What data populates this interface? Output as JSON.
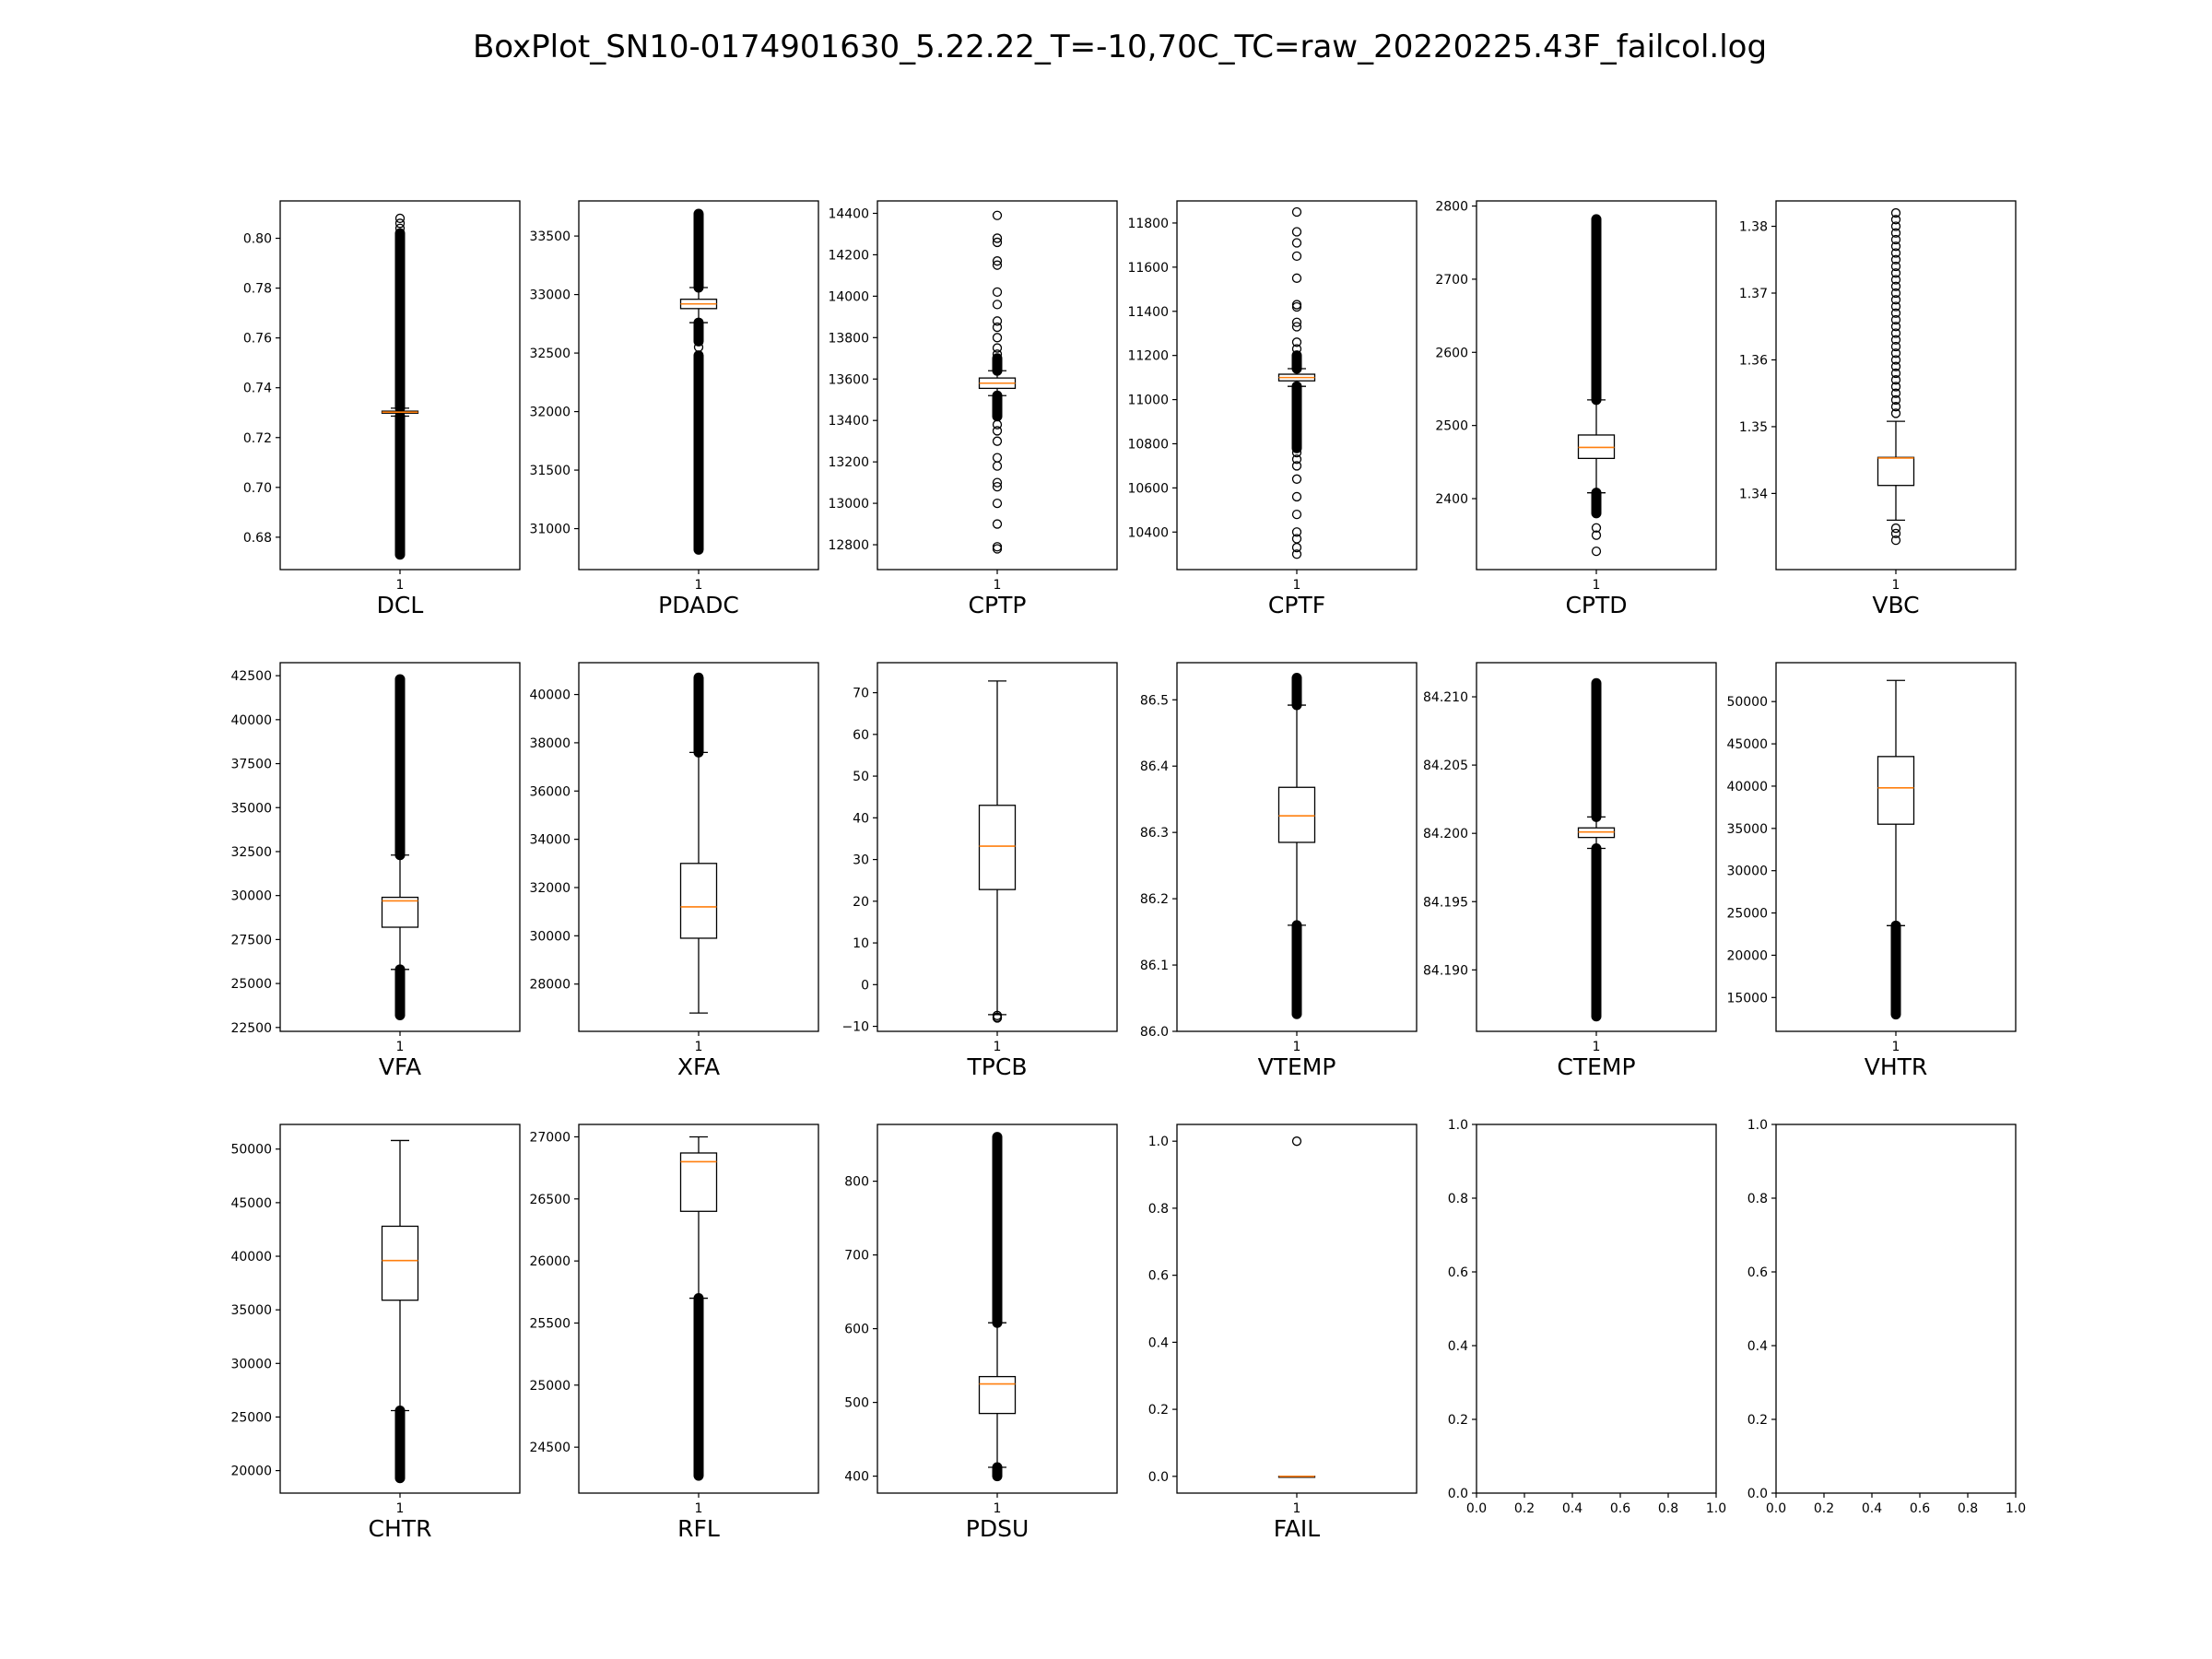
{
  "figure": {
    "title": "BoxPlot_SN10-0174901630_5.22.22_T=-10,70C_TC=raw_20220225.43F_failcol.log"
  },
  "chart_data": [
    {
      "type": "box",
      "xlabel": "DCL",
      "category": "1",
      "ylim": [
        0.667,
        0.815
      ],
      "yticks": [
        0.68,
        0.7,
        0.72,
        0.74,
        0.76,
        0.78,
        0.8
      ],
      "ytick_labels": [
        "0.68",
        "0.70",
        "0.72",
        "0.74",
        "0.76",
        "0.78",
        "0.80"
      ],
      "box": {
        "q1": 0.7298,
        "median": 0.7302,
        "q3": 0.7306,
        "whisker_low": 0.7286,
        "whisker_high": 0.7318
      },
      "outlier_bands": [
        [
          0.673,
          0.7286
        ],
        [
          0.7318,
          0.802
        ]
      ],
      "outliers": [
        0.804,
        0.806,
        0.808
      ]
    },
    {
      "type": "box",
      "xlabel": "PDADC",
      "category": "1",
      "ylim": [
        30650,
        33800
      ],
      "yticks": [
        31000,
        31500,
        32000,
        32500,
        33000,
        33500
      ],
      "ytick_labels": [
        "31000",
        "31500",
        "32000",
        "32500",
        "33000",
        "33500"
      ],
      "box": {
        "q1": 32880,
        "median": 32920,
        "q3": 32960,
        "whisker_low": 32760,
        "whisker_high": 33060
      },
      "outlier_bands": [
        [
          30820,
          32480
        ],
        [
          32600,
          32760
        ],
        [
          33060,
          33690
        ]
      ],
      "outliers": [
        32550
      ]
    },
    {
      "type": "box",
      "xlabel": "CPTP",
      "category": "1",
      "ylim": [
        12680,
        14460
      ],
      "yticks": [
        12800,
        13000,
        13200,
        13400,
        13600,
        13800,
        14000,
        14200,
        14400
      ],
      "ytick_labels": [
        "12800",
        "13000",
        "13200",
        "13400",
        "13600",
        "13800",
        "14000",
        "14200",
        "14400"
      ],
      "box": {
        "q1": 13555,
        "median": 13580,
        "q3": 13605,
        "whisker_low": 13520,
        "whisker_high": 13640
      },
      "outlier_bands": [
        [
          13420,
          13520
        ],
        [
          13640,
          13700
        ]
      ],
      "outliers": [
        12780,
        12790,
        12900,
        13000,
        13080,
        13100,
        13180,
        13220,
        13300,
        13350,
        13380,
        13720,
        13750,
        13800,
        13850,
        13880,
        13960,
        14020,
        14150,
        14170,
        14260,
        14280,
        14390
      ]
    },
    {
      "type": "box",
      "xlabel": "CPTF",
      "category": "1",
      "ylim": [
        10230,
        11900
      ],
      "yticks": [
        10400,
        10600,
        10800,
        11000,
        11200,
        11400,
        11600,
        11800
      ],
      "ytick_labels": [
        "10400",
        "10600",
        "10800",
        "11000",
        "11200",
        "11400",
        "11600",
        "11800"
      ],
      "box": {
        "q1": 11085,
        "median": 11100,
        "q3": 11115,
        "whisker_low": 11060,
        "whisker_high": 11140
      },
      "outlier_bands": [
        [
          10780,
          11060
        ],
        [
          11140,
          11200
        ]
      ],
      "outliers": [
        10300,
        10330,
        10370,
        10400,
        10480,
        10560,
        10640,
        10700,
        10730,
        10760,
        11230,
        11260,
        11330,
        11350,
        11420,
        11430,
        11550,
        11650,
        11710,
        11760,
        11850
      ]
    },
    {
      "type": "box",
      "xlabel": "CPTD",
      "category": "1",
      "ylim": [
        2303,
        2807
      ],
      "yticks": [
        2400,
        2500,
        2600,
        2700,
        2800
      ],
      "ytick_labels": [
        "2400",
        "2500",
        "2600",
        "2700",
        "2800"
      ],
      "box": {
        "q1": 2455,
        "median": 2470,
        "q3": 2487,
        "whisker_low": 2408,
        "whisker_high": 2535
      },
      "outlier_bands": [
        [
          2380,
          2408
        ],
        [
          2535,
          2782
        ]
      ],
      "outliers": [
        2328,
        2350,
        2360
      ]
    },
    {
      "type": "box",
      "xlabel": "VBC",
      "category": "1",
      "ylim": [
        1.3286,
        1.3838
      ],
      "yticks": [
        1.34,
        1.35,
        1.36,
        1.37,
        1.38
      ],
      "ytick_labels": [
        "1.34",
        "1.35",
        "1.36",
        "1.37",
        "1.38"
      ],
      "box": {
        "q1": 1.3412,
        "median": 1.3453,
        "q3": 1.3454,
        "whisker_low": 1.336,
        "whisker_high": 1.3508
      },
      "outlier_bands": [],
      "outliers": [
        1.333,
        1.334,
        1.3348,
        1.352,
        1.353,
        1.354,
        1.355,
        1.356,
        1.357,
        1.358,
        1.359,
        1.36,
        1.361,
        1.362,
        1.363,
        1.364,
        1.365,
        1.366,
        1.367,
        1.368,
        1.369,
        1.37,
        1.371,
        1.372,
        1.373,
        1.374,
        1.375,
        1.376,
        1.377,
        1.378,
        1.379,
        1.38,
        1.381,
        1.382
      ]
    },
    {
      "type": "box",
      "xlabel": "VFA",
      "category": "1",
      "ylim": [
        22280,
        43240
      ],
      "yticks": [
        22500,
        25000,
        27500,
        30000,
        32500,
        35000,
        37500,
        40000,
        42500
      ],
      "ytick_labels": [
        "22500",
        "25000",
        "27500",
        "30000",
        "32500",
        "35000",
        "37500",
        "40000",
        "42500"
      ],
      "box": {
        "q1": 28200,
        "median": 29700,
        "q3": 29900,
        "whisker_low": 25800,
        "whisker_high": 32300
      },
      "outlier_bands": [
        [
          23200,
          25800
        ],
        [
          32300,
          42300
        ]
      ],
      "outliers": []
    },
    {
      "type": "box",
      "xlabel": "XFA",
      "category": "1",
      "ylim": [
        26040,
        41320
      ],
      "yticks": [
        28000,
        30000,
        32000,
        34000,
        36000,
        38000,
        40000
      ],
      "ytick_labels": [
        "28000",
        "30000",
        "32000",
        "34000",
        "36000",
        "38000",
        "40000"
      ],
      "box": {
        "q1": 29900,
        "median": 31200,
        "q3": 33000,
        "whisker_low": 26800,
        "whisker_high": 37600
      },
      "outlier_bands": [
        [
          37600,
          40700
        ]
      ],
      "outliers": []
    },
    {
      "type": "box",
      "xlabel": "TPCB",
      "category": "1",
      "ylim": [
        -11.2,
        77.2
      ],
      "yticks": [
        -10,
        0,
        10,
        20,
        30,
        40,
        50,
        60,
        70
      ],
      "ytick_labels": [
        "−10",
        "0",
        "10",
        "20",
        "30",
        "40",
        "50",
        "60",
        "70"
      ],
      "box": {
        "q1": 22.8,
        "median": 33.2,
        "q3": 43.0,
        "whisker_low": -7.2,
        "whisker_high": 72.8
      },
      "outlier_bands": [],
      "outliers": [
        -7.4,
        -7.8,
        -8.0
      ]
    },
    {
      "type": "box",
      "xlabel": "VTEMP",
      "category": "1",
      "ylim": [
        86.0,
        86.556
      ],
      "yticks": [
        86.0,
        86.1,
        86.2,
        86.3,
        86.4,
        86.5
      ],
      "ytick_labels": [
        "86.0",
        "86.1",
        "86.2",
        "86.3",
        "86.4",
        "86.5"
      ],
      "box": {
        "q1": 86.285,
        "median": 86.325,
        "q3": 86.368,
        "whisker_low": 86.16,
        "whisker_high": 86.492
      },
      "outlier_bands": [
        [
          86.026,
          86.16
        ],
        [
          86.492,
          86.533
        ]
      ],
      "outliers": []
    },
    {
      "type": "box",
      "xlabel": "CTEMP",
      "category": "1",
      "ylim": [
        84.1855,
        84.2125
      ],
      "yticks": [
        84.19,
        84.195,
        84.2,
        84.205,
        84.21
      ],
      "ytick_labels": [
        "84.190",
        "84.195",
        "84.200",
        "84.205",
        "84.210"
      ],
      "box": {
        "q1": 84.1997,
        "median": 84.2001,
        "q3": 84.2004,
        "whisker_low": 84.1989,
        "whisker_high": 84.2012
      },
      "outlier_bands": [
        [
          84.1866,
          84.1989
        ],
        [
          84.2012,
          84.211
        ]
      ],
      "outliers": []
    },
    {
      "type": "box",
      "xlabel": "VHTR",
      "category": "1",
      "ylim": [
        11000,
        54600
      ],
      "yticks": [
        15000,
        20000,
        25000,
        30000,
        35000,
        40000,
        45000,
        50000
      ],
      "ytick_labels": [
        "15000",
        "20000",
        "25000",
        "30000",
        "35000",
        "40000",
        "45000",
        "50000"
      ],
      "box": {
        "q1": 35500,
        "median": 39800,
        "q3": 43500,
        "whisker_low": 23500,
        "whisker_high": 52500
      },
      "outlier_bands": [
        [
          13000,
          23500
        ]
      ],
      "outliers": []
    },
    {
      "type": "box",
      "xlabel": "CHTR",
      "category": "1",
      "ylim": [
        17900,
        52300
      ],
      "yticks": [
        20000,
        25000,
        30000,
        35000,
        40000,
        45000,
        50000
      ],
      "ytick_labels": [
        "20000",
        "25000",
        "30000",
        "35000",
        "40000",
        "45000",
        "50000"
      ],
      "box": {
        "q1": 35900,
        "median": 39600,
        "q3": 42800,
        "whisker_low": 25600,
        "whisker_high": 50800
      },
      "outlier_bands": [
        [
          19300,
          25600
        ]
      ],
      "outliers": []
    },
    {
      "type": "box",
      "xlabel": "RFL",
      "category": "1",
      "ylim": [
        24130,
        27100
      ],
      "yticks": [
        24500,
        25000,
        25500,
        26000,
        26500,
        27000
      ],
      "ytick_labels": [
        "24500",
        "25000",
        "25500",
        "26000",
        "26500",
        "27000"
      ],
      "box": {
        "q1": 26400,
        "median": 26800,
        "q3": 26870,
        "whisker_low": 25700,
        "whisker_high": 27000
      },
      "outlier_bands": [
        [
          24270,
          25700
        ]
      ],
      "outliers": []
    },
    {
      "type": "box",
      "xlabel": "PDSU",
      "category": "1",
      "ylim": [
        377,
        877
      ],
      "yticks": [
        400,
        500,
        600,
        700,
        800
      ],
      "ytick_labels": [
        "400",
        "500",
        "600",
        "700",
        "800"
      ],
      "box": {
        "q1": 485,
        "median": 525,
        "q3": 535,
        "whisker_low": 412,
        "whisker_high": 608
      },
      "outlier_bands": [
        [
          400,
          412
        ],
        [
          608,
          860
        ]
      ],
      "outliers": []
    },
    {
      "type": "box",
      "xlabel": "FAIL",
      "category": "1",
      "ylim": [
        -0.05,
        1.05
      ],
      "yticks": [
        0.0,
        0.2,
        0.4,
        0.6,
        0.8,
        1.0
      ],
      "ytick_labels": [
        "0.0",
        "0.2",
        "0.4",
        "0.6",
        "0.8",
        "1.0"
      ],
      "box": {
        "q1": 0.0,
        "median": 0.0,
        "q3": 0.0,
        "whisker_low": 0.0,
        "whisker_high": 0.0
      },
      "outlier_bands": [],
      "outliers": [
        1.0
      ]
    },
    {
      "type": "empty",
      "xlabel": "",
      "xlim": [
        0,
        1
      ],
      "ylim": [
        0,
        1
      ],
      "xticks": [
        0,
        0.2,
        0.4,
        0.6,
        0.8,
        1.0
      ],
      "xtick_labels": [
        "0.0",
        "0.2",
        "0.4",
        "0.6",
        "0.8",
        "1.0"
      ],
      "yticks": [
        0,
        0.2,
        0.4,
        0.6,
        0.8,
        1.0
      ],
      "ytick_labels": [
        "0.0",
        "0.2",
        "0.4",
        "0.6",
        "0.8",
        "1.0"
      ]
    },
    {
      "type": "empty",
      "xlabel": "",
      "xlim": [
        0,
        1
      ],
      "ylim": [
        0,
        1
      ],
      "xticks": [
        0,
        0.2,
        0.4,
        0.6,
        0.8,
        1.0
      ],
      "xtick_labels": [
        "0.0",
        "0.2",
        "0.4",
        "0.6",
        "0.8",
        "1.0"
      ],
      "yticks": [
        0,
        0.2,
        0.4,
        0.6,
        0.8,
        1.0
      ],
      "ytick_labels": [
        "0.0",
        "0.2",
        "0.4",
        "0.6",
        "0.8",
        "1.0"
      ]
    }
  ],
  "colors": {
    "box": "#000000",
    "median": "#ff7f0e",
    "background": "#ffffff"
  }
}
